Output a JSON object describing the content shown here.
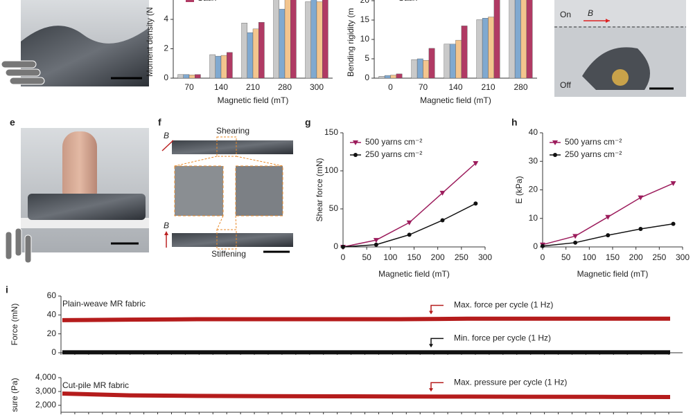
{
  "panel_labels": [
    "e",
    "f",
    "g",
    "h",
    "i"
  ],
  "photo_labels": {
    "on": "On",
    "off": "Off",
    "b_top": "B",
    "shearing": "Shearing",
    "b_shear": "B",
    "b_stiff": "B",
    "stiffening": "Stiffening"
  },
  "chart_data": [
    {
      "type": "bar",
      "ylabel": "Moment density (N",
      "xlabel": "Magnetic field (mT)",
      "legend_style": "swatch",
      "categories": [
        "70",
        "140",
        "210",
        "280",
        "300"
      ],
      "ylim": [
        0,
        6
      ],
      "yticks": [
        0,
        2,
        4
      ],
      "series": [
        {
          "color": "#c9c9c9",
          "values": [
            0.25,
            1.6,
            3.75,
            5.6,
            5.2
          ]
        },
        {
          "color": "#80a9d0",
          "values": [
            0.25,
            1.5,
            3.1,
            4.7,
            5.5
          ]
        },
        {
          "color": "#f3c58e",
          "values": [
            0.22,
            1.55,
            3.35,
            5.4,
            5.2
          ]
        },
        {
          "name": "Satin",
          "color": "#b03a64",
          "values": [
            0.25,
            1.75,
            3.8,
            5.8,
            5.6
          ]
        }
      ]
    },
    {
      "type": "bar",
      "ylabel": "Bending rigidity (m",
      "xlabel": "Magnetic field (mT)",
      "legend_style": "line",
      "categories": [
        "0",
        "70",
        "140",
        "210",
        "280"
      ],
      "ylim": [
        0,
        22
      ],
      "yticks": [
        0,
        5,
        10,
        15,
        20
      ],
      "series": [
        {
          "color": "#c9c9c9",
          "values": [
            0.5,
            4.8,
            8.8,
            15.1,
            21
          ]
        },
        {
          "color": "#80a9d0",
          "values": [
            0.7,
            5.0,
            8.8,
            15.5,
            21
          ]
        },
        {
          "color": "#f3c58e",
          "values": [
            0.8,
            4.6,
            9.8,
            15.8,
            21
          ]
        },
        {
          "name": "Satin",
          "color": "#b03a64",
          "values": [
            1.1,
            7.7,
            13.5,
            21,
            21.5
          ]
        }
      ]
    },
    {
      "type": "line",
      "ylabel": "Shear force (mN)",
      "xlabel": "Magnetic field (mT)",
      "xlim": [
        0,
        300
      ],
      "xticks": [
        0,
        50,
        100,
        150,
        200,
        250,
        300
      ],
      "ylim": [
        0,
        150
      ],
      "yticks": [
        0,
        50,
        100,
        150
      ],
      "x": [
        0,
        70,
        140,
        210,
        280
      ],
      "series": [
        {
          "name": "500 yarns cm⁻²",
          "color": "#9c1c5c",
          "marker": "triangle",
          "values": [
            0,
            9,
            32,
            71,
            110
          ]
        },
        {
          "name": "250 yarns cm⁻²",
          "color": "#111111",
          "marker": "circle",
          "values": [
            0,
            3,
            16,
            35,
            57
          ]
        }
      ]
    },
    {
      "type": "line",
      "ylabel": "E (kPa)",
      "xlabel": "Magnetic field (mT)",
      "xlim": [
        0,
        300
      ],
      "xticks": [
        0,
        50,
        100,
        150,
        200,
        250,
        300
      ],
      "ylim": [
        0,
        40
      ],
      "yticks": [
        0,
        10,
        20,
        30,
        40
      ],
      "x": [
        0,
        70,
        140,
        210,
        280
      ],
      "series": [
        {
          "name": "500 yarns cm⁻²",
          "color": "#9c1c5c",
          "marker": "triangle",
          "values": [
            0.8,
            3.8,
            10.5,
            17.3,
            22.3
          ]
        },
        {
          "name": "250 yarns cm⁻²",
          "color": "#111111",
          "marker": "circle",
          "values": [
            0.3,
            1.5,
            4.1,
            6.3,
            8.1
          ]
        }
      ]
    },
    {
      "type": "trace",
      "title": "Plain-weave MR fabric",
      "ylabel": "Force (mN)",
      "ylim": [
        0,
        60
      ],
      "yticks": [
        0,
        20,
        40,
        60
      ],
      "series": [
        {
          "name": "Max. force per cycle (1 Hz)",
          "color": "#b51c1c",
          "values": [
            34.5,
            35,
            35.5,
            35.5,
            35.5,
            35.5,
            36,
            36,
            36,
            36
          ]
        },
        {
          "name": "Min. force per cycle (1 Hz)",
          "color": "#111111",
          "values": [
            0.5,
            0.5,
            0.5,
            0.5,
            0.5,
            0.5,
            0.5,
            0.5,
            0.5,
            0.5
          ]
        }
      ]
    },
    {
      "type": "trace",
      "title": "Cut-pile MR fabric",
      "ylabel": "sure (Pa)",
      "ylim": [
        1500,
        4000
      ],
      "yticks": [
        {
          "value": 2000,
          "label": "2,000"
        },
        {
          "value": 3000,
          "label": "3,000"
        },
        {
          "value": 4000,
          "label": "4,000"
        }
      ],
      "series": [
        {
          "name": "Max. pressure per cycle (1 Hz)",
          "color": "#b51c1c",
          "values": [
            2850,
            2720,
            2680,
            2660,
            2650,
            2640,
            2630,
            2620,
            2610,
            2600
          ]
        }
      ]
    }
  ]
}
